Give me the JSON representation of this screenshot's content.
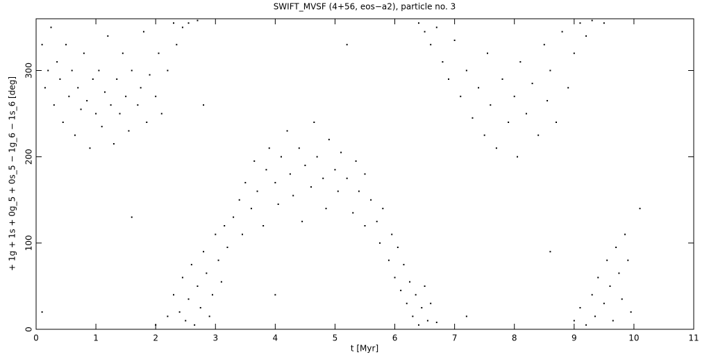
{
  "chart_data": {
    "type": "scatter",
    "title": "SWIFT_MVSF (4+56, eos−a2), particle no. 3",
    "x_label": "t [Myr]",
    "y_label": "+ 1g + 1s + 0g_5 + 0s_5 − 1g_6 − 1s_6 [deg]",
    "color": "#000000",
    "xlim": [
      0,
      11
    ],
    "xticks": [
      0,
      1,
      2,
      3,
      4,
      5,
      6,
      7,
      8,
      9,
      10,
      11
    ],
    "ylim": [
      0,
      360
    ],
    "yticks": [
      0,
      100,
      200,
      300
    ],
    "x": [
      0.1,
      0.15,
      0.2,
      0.25,
      0.3,
      0.35,
      0.4,
      0.45,
      0.5,
      0.55,
      0.6,
      0.65,
      0.7,
      0.75,
      0.8,
      0.85,
      0.9,
      0.95,
      1.0,
      1.05,
      1.1,
      1.15,
      1.2,
      1.25,
      1.3,
      1.35,
      1.4,
      1.45,
      1.5,
      1.55,
      1.6,
      1.7,
      1.75,
      1.8,
      1.85,
      1.9,
      2.0,
      2.05,
      2.1,
      2.2,
      2.3,
      2.35,
      2.45,
      2.55,
      2.7,
      2.0,
      2.2,
      2.3,
      2.4,
      2.45,
      2.5,
      2.55,
      2.6,
      2.65,
      2.7,
      2.75,
      2.8,
      2.85,
      2.9,
      2.95,
      3.0,
      3.05,
      3.1,
      3.15,
      3.2,
      3.3,
      3.4,
      3.45,
      3.5,
      3.6,
      3.65,
      3.7,
      3.8,
      3.85,
      3.9,
      4.0,
      4.05,
      4.1,
      4.2,
      4.25,
      4.3,
      4.4,
      4.45,
      4.5,
      4.6,
      4.65,
      4.7,
      4.8,
      4.85,
      4.9,
      5.0,
      5.05,
      5.1,
      5.2,
      5.3,
      5.35,
      5.4,
      5.5,
      5.5,
      5.6,
      5.7,
      5.75,
      5.8,
      5.9,
      5.95,
      6.0,
      6.05,
      6.1,
      6.15,
      6.2,
      6.25,
      6.3,
      6.35,
      6.4,
      6.45,
      6.5,
      6.55,
      6.6,
      6.7,
      6.4,
      6.5,
      6.6,
      6.7,
      6.8,
      6.9,
      7.0,
      7.1,
      7.2,
      7.3,
      7.4,
      7.5,
      7.55,
      7.6,
      7.7,
      7.8,
      7.9,
      8.0,
      8.05,
      8.1,
      8.2,
      8.3,
      8.4,
      8.5,
      8.55,
      8.6,
      8.7,
      8.8,
      8.9,
      9.0,
      9.1,
      9.2,
      9.3,
      9.5,
      9.0,
      9.1,
      9.2,
      9.3,
      9.35,
      9.4,
      9.5,
      9.55,
      9.6,
      9.65,
      9.7,
      9.75,
      9.8,
      9.85,
      9.9,
      9.95,
      0.1,
      1.6,
      2.8,
      5.2,
      7.2,
      8.6,
      4.0,
      10.1
    ],
    "values": [
      330,
      280,
      300,
      350,
      260,
      310,
      290,
      240,
      330,
      270,
      300,
      225,
      280,
      255,
      320,
      265,
      210,
      290,
      250,
      300,
      235,
      275,
      340,
      260,
      215,
      290,
      250,
      320,
      270,
      230,
      300,
      260,
      280,
      345,
      240,
      295,
      270,
      320,
      250,
      300,
      355,
      330,
      350,
      355,
      358,
      5,
      15,
      40,
      20,
      60,
      10,
      35,
      75,
      5,
      50,
      25,
      90,
      65,
      15,
      40,
      110,
      80,
      55,
      120,
      95,
      130,
      150,
      110,
      170,
      140,
      195,
      160,
      120,
      185,
      210,
      170,
      145,
      200,
      230,
      180,
      155,
      210,
      125,
      190,
      165,
      240,
      200,
      175,
      140,
      220,
      185,
      160,
      205,
      175,
      135,
      195,
      160,
      120,
      180,
      150,
      125,
      100,
      140,
      80,
      110,
      60,
      95,
      45,
      75,
      30,
      55,
      15,
      40,
      5,
      25,
      50,
      10,
      30,
      8,
      355,
      345,
      330,
      350,
      310,
      290,
      335,
      270,
      300,
      245,
      280,
      225,
      320,
      260,
      210,
      290,
      240,
      270,
      200,
      310,
      250,
      285,
      225,
      330,
      265,
      300,
      240,
      345,
      280,
      320,
      355,
      340,
      358,
      355,
      10,
      25,
      5,
      40,
      15,
      60,
      30,
      80,
      50,
      10,
      95,
      65,
      35,
      110,
      80,
      20,
      20,
      130,
      260,
      330,
      15,
      90,
      40,
      140
    ]
  }
}
